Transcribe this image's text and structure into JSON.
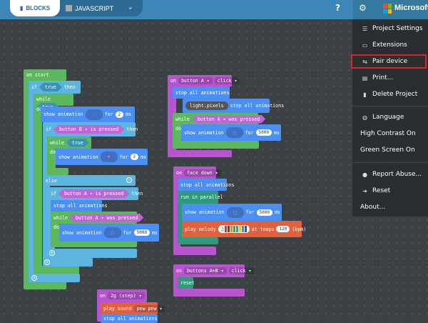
{
  "header": {
    "blocks_tab": "BLOCKS",
    "js_tab": "JAVASCRIPT",
    "brand": "Microsoft",
    "icons": [
      "puzzle-icon",
      "javascript-icon",
      "chevron-down-icon",
      "help-icon",
      "gear-icon",
      "microsoft-logo"
    ]
  },
  "menu": {
    "items": [
      {
        "label": "Project Settings",
        "icon": "sliders-icon"
      },
      {
        "label": "Extensions",
        "icon": "extensions-icon"
      },
      {
        "label": "Pair device",
        "icon": "usb-icon",
        "highlighted": true
      },
      {
        "label": "Print...",
        "icon": "print-icon"
      },
      {
        "label": "Delete Project",
        "icon": "trash-icon"
      },
      {
        "label": "Language",
        "icon": "globe-icon"
      },
      {
        "label": "High Contrast On"
      },
      {
        "label": "Green Screen On"
      },
      {
        "label": "Report Abuse...",
        "icon": "alert-icon"
      },
      {
        "label": "Reset",
        "icon": "signout-icon"
      },
      {
        "label": "About..."
      }
    ]
  },
  "blocks": {
    "on_start": "on start",
    "if": "if",
    "then": "then",
    "true": "true",
    "while": "while",
    "do": "do",
    "else": "else",
    "show_animation": "show animation",
    "for": "for",
    "ms": "ms",
    "v2": "2",
    "v5000": "5000",
    "button_b": "button B",
    "button_a": "button A",
    "is_pressed": "is pressed",
    "was_pressed": "was pressed",
    "stop_all": "stop all animations",
    "light_pixels": "light.pixels",
    "on": "on",
    "click": "click",
    "face_down": "face down",
    "run_in_parallel": "run in parallel",
    "play_melody": "play melody",
    "at_tempo": "at tempo",
    "tempo": "120",
    "bpm": "(bpm)",
    "buttons_ab": "buttons A+B",
    "reset": "reset",
    "shake_2g": "2g (step)",
    "play_sound": "play sound",
    "pew_pew": "pew pew"
  },
  "colors": {
    "loops": "#5cb85c",
    "logic": "#5bb5df",
    "light": "#4b8ff2",
    "events": "#b655cd",
    "control": "#2f9a7e",
    "music": "#e0613d",
    "header": "#3d87b8",
    "highlight": "#d8262b"
  }
}
